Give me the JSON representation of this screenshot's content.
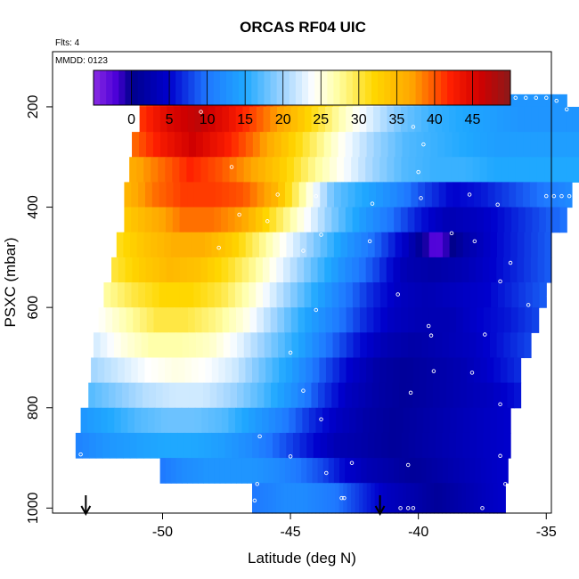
{
  "chart_data": {
    "type": "heatmap",
    "title": "ORCAS RF04 UIC",
    "annotations": {
      "flights": "Flts: 4",
      "date": "MMDD: 0123"
    },
    "xlabel": "Latitude (deg N)",
    "ylabel": "PSXC (mbar)",
    "xlim": [
      -54.3,
      -34.8
    ],
    "ylim": [
      1010,
      90
    ],
    "x_ticks": [
      -50,
      -45,
      -40,
      -35
    ],
    "x_tick_labels": [
      "-50",
      "-45",
      "-40",
      "-35"
    ],
    "y_ticks": [
      200,
      400,
      600,
      800,
      1000
    ],
    "y_tick_labels": [
      "200",
      "400",
      "600",
      "800",
      "1000"
    ],
    "colorbar": {
      "range": [
        -5,
        50
      ],
      "ticks": [
        0,
        5,
        10,
        15,
        20,
        25,
        30,
        35,
        40,
        45
      ],
      "tick_labels": [
        "0",
        "5",
        "10",
        "15",
        "20",
        "25",
        "30",
        "35",
        "40",
        "45"
      ],
      "stops": [
        {
          "v": -5,
          "c": "#8a2be2"
        },
        {
          "v": -2,
          "c": "#4b00d8"
        },
        {
          "v": 0,
          "c": "#00008c"
        },
        {
          "v": 5,
          "c": "#0000cd"
        },
        {
          "v": 10,
          "c": "#1f78ff"
        },
        {
          "v": 15,
          "c": "#1fa8ff"
        },
        {
          "v": 20,
          "c": "#9fd4ff"
        },
        {
          "v": 24,
          "c": "#ffffff"
        },
        {
          "v": 27,
          "c": "#ffffaa"
        },
        {
          "v": 32,
          "c": "#ffd700"
        },
        {
          "v": 37,
          "c": "#ffa500"
        },
        {
          "v": 42,
          "c": "#ff2000"
        },
        {
          "v": 46,
          "c": "#d00000"
        },
        {
          "v": 50,
          "c": "#8b1a1a"
        }
      ]
    },
    "grid": false,
    "legend": "colorbar-top",
    "arrow_markers_lat": [
      -53.0,
      -41.5
    ],
    "layers": [
      {
        "p_top": 175,
        "p_bot": 200,
        "lat_min": -50.9,
        "lat_max": -34.2,
        "values": [
          40,
          44,
          47,
          45,
          42,
          38,
          34,
          29,
          24,
          20,
          17,
          15,
          14,
          13,
          13,
          13
        ]
      },
      {
        "p_top": 200,
        "p_bot": 250,
        "lat_min": -50.9,
        "lat_max": -33.7,
        "values": [
          41,
          45,
          47,
          44,
          40,
          36,
          31,
          26,
          22,
          18,
          16,
          15,
          14,
          13,
          13,
          13
        ]
      },
      {
        "p_top": 250,
        "p_bot": 300,
        "lat_min": -51.2,
        "lat_max": -33.4,
        "values": [
          39,
          43,
          46,
          43,
          39,
          34,
          29,
          24,
          20,
          17,
          16,
          15,
          14,
          14,
          14,
          14
        ]
      },
      {
        "p_top": 300,
        "p_bot": 350,
        "lat_min": -51.3,
        "lat_max": -33.4,
        "values": [
          36,
          39,
          42,
          40,
          37,
          33,
          28,
          24,
          20,
          17,
          16,
          16,
          15,
          15,
          15,
          15
        ]
      },
      {
        "p_top": 350,
        "p_bot": 400,
        "lat_min": -51.5,
        "lat_max": -34.0,
        "values": [
          35,
          39,
          41,
          41,
          40,
          36,
          27,
          18,
          15,
          12,
          8,
          5,
          6,
          8,
          10,
          12
        ]
      },
      {
        "p_top": 400,
        "p_bot": 450,
        "lat_min": -51.5,
        "lat_max": -34.2,
        "values": [
          33,
          36,
          39,
          39,
          37,
          31,
          25,
          19,
          14,
          10,
          6,
          3,
          4,
          6,
          8,
          10
        ]
      },
      {
        "p_top": 450,
        "p_bot": 500,
        "lat_min": -51.8,
        "lat_max": -34.8,
        "values": [
          31,
          34,
          36,
          36,
          33,
          28,
          23,
          18,
          13,
          9,
          4,
          -3,
          2,
          5,
          7,
          9
        ]
      },
      {
        "p_top": 500,
        "p_bot": 550,
        "lat_min": -52.0,
        "lat_max": -34.8,
        "values": [
          30,
          33,
          35,
          34,
          31,
          27,
          22,
          17,
          12,
          8,
          3,
          2,
          3,
          5,
          7,
          9
        ]
      },
      {
        "p_top": 550,
        "p_bot": 600,
        "lat_min": -52.3,
        "lat_max": -35.0,
        "values": [
          27,
          30,
          32,
          32,
          30,
          26,
          21,
          16,
          11,
          7,
          4,
          3,
          4,
          5,
          7,
          9
        ]
      },
      {
        "p_top": 600,
        "p_bot": 650,
        "lat_min": -52.5,
        "lat_max": -35.3,
        "values": [
          24,
          27,
          30,
          30,
          28,
          25,
          20,
          15,
          11,
          7,
          4,
          3,
          3,
          5,
          6,
          8
        ]
      },
      {
        "p_top": 650,
        "p_bot": 700,
        "lat_min": -52.7,
        "lat_max": -35.6,
        "values": [
          22,
          25,
          27,
          27,
          26,
          23,
          19,
          15,
          10,
          6,
          3,
          2,
          3,
          4,
          6,
          8
        ]
      },
      {
        "p_top": 700,
        "p_bot": 750,
        "lat_min": -52.8,
        "lat_max": -36.0,
        "values": [
          20,
          22,
          24,
          25,
          24,
          22,
          18,
          14,
          9,
          5,
          2,
          1,
          2,
          3,
          5,
          7
        ]
      },
      {
        "p_top": 750,
        "p_bot": 800,
        "lat_min": -52.9,
        "lat_max": -36.0,
        "values": [
          17,
          19,
          21,
          22,
          22,
          20,
          17,
          13,
          8,
          4,
          2,
          1,
          2,
          3,
          4,
          6
        ]
      },
      {
        "p_top": 800,
        "p_bot": 850,
        "lat_min": -53.2,
        "lat_max": -36.4,
        "values": [
          13,
          15,
          17,
          18,
          18,
          17,
          14,
          11,
          7,
          4,
          2,
          1,
          2,
          3,
          4,
          5
        ]
      },
      {
        "p_top": 850,
        "p_bot": 900,
        "lat_min": -53.4,
        "lat_max": -36.4,
        "values": [
          11,
          13,
          14,
          15,
          15,
          14,
          12,
          9,
          6,
          3,
          2,
          1,
          2,
          3,
          4,
          5
        ]
      },
      {
        "p_top": 900,
        "p_bot": 950,
        "lat_min": -50.1,
        "lat_max": -36.5,
        "values": [
          10,
          12,
          13,
          13,
          13,
          12,
          10,
          8,
          5,
          3,
          2,
          1,
          2,
          3,
          4,
          5
        ]
      },
      {
        "p_top": 950,
        "p_bot": 1010,
        "lat_min": -46.5,
        "lat_max": -36.6,
        "values": [
          10,
          11,
          12,
          12,
          11,
          10,
          8,
          6,
          4,
          3,
          2,
          1,
          2,
          3,
          4,
          5
        ]
      }
    ],
    "dew_point_symbols": [
      {
        "lat": -50.8,
        "p": 182
      },
      {
        "lat": -50.4,
        "p": 182
      },
      {
        "lat": -50.0,
        "p": 182
      },
      {
        "lat": -49.6,
        "p": 182
      },
      {
        "lat": -49.2,
        "p": 182
      },
      {
        "lat": -48.8,
        "p": 182
      },
      {
        "lat": -48.4,
        "p": 182
      },
      {
        "lat": -48.0,
        "p": 182
      },
      {
        "lat": -47.6,
        "p": 182
      },
      {
        "lat": -38.6,
        "p": 182
      },
      {
        "lat": -38.2,
        "p": 182
      },
      {
        "lat": -37.8,
        "p": 182
      },
      {
        "lat": -37.4,
        "p": 182
      },
      {
        "lat": -37.0,
        "p": 182
      },
      {
        "lat": -36.6,
        "p": 182
      },
      {
        "lat": -36.2,
        "p": 182
      },
      {
        "lat": -35.8,
        "p": 182
      },
      {
        "lat": -35.4,
        "p": 182
      },
      {
        "lat": -35.0,
        "p": 182
      },
      {
        "lat": -34.6,
        "p": 188
      },
      {
        "lat": -34.2,
        "p": 205
      },
      {
        "lat": -48.5,
        "p": 210
      },
      {
        "lat": -40.2,
        "p": 240
      },
      {
        "lat": -39.8,
        "p": 275
      },
      {
        "lat": -47.3,
        "p": 320
      },
      {
        "lat": -40.0,
        "p": 330
      },
      {
        "lat": -33.5,
        "p": 262
      },
      {
        "lat": -33.5,
        "p": 292
      },
      {
        "lat": -33.4,
        "p": 343
      },
      {
        "lat": -35.0,
        "p": 378
      },
      {
        "lat": -34.7,
        "p": 378
      },
      {
        "lat": -34.4,
        "p": 378
      },
      {
        "lat": -34.1,
        "p": 378
      },
      {
        "lat": -44.0,
        "p": 378
      },
      {
        "lat": -45.5,
        "p": 375
      },
      {
        "lat": -39.9,
        "p": 382
      },
      {
        "lat": -38.0,
        "p": 375
      },
      {
        "lat": -41.8,
        "p": 393
      },
      {
        "lat": -36.9,
        "p": 395
      },
      {
        "lat": -47.0,
        "p": 415
      },
      {
        "lat": -45.9,
        "p": 428
      },
      {
        "lat": -38.7,
        "p": 452
      },
      {
        "lat": -43.8,
        "p": 455
      },
      {
        "lat": -41.9,
        "p": 468
      },
      {
        "lat": -37.8,
        "p": 468
      },
      {
        "lat": -47.8,
        "p": 481
      },
      {
        "lat": -44.5,
        "p": 487
      },
      {
        "lat": -36.4,
        "p": 511
      },
      {
        "lat": -36.8,
        "p": 548
      },
      {
        "lat": -40.8,
        "p": 574
      },
      {
        "lat": -34.9,
        "p": 578
      },
      {
        "lat": -35.7,
        "p": 595
      },
      {
        "lat": -44.0,
        "p": 605
      },
      {
        "lat": -39.6,
        "p": 637
      },
      {
        "lat": -39.5,
        "p": 656
      },
      {
        "lat": -37.4,
        "p": 654
      },
      {
        "lat": -45.0,
        "p": 690
      },
      {
        "lat": -39.4,
        "p": 727
      },
      {
        "lat": -37.9,
        "p": 730
      },
      {
        "lat": -44.5,
        "p": 766
      },
      {
        "lat": -40.3,
        "p": 770
      },
      {
        "lat": -36.8,
        "p": 793
      },
      {
        "lat": -43.8,
        "p": 823
      },
      {
        "lat": -46.2,
        "p": 857
      },
      {
        "lat": -53.2,
        "p": 893
      },
      {
        "lat": -45.0,
        "p": 897
      },
      {
        "lat": -42.6,
        "p": 910
      },
      {
        "lat": -40.4,
        "p": 914
      },
      {
        "lat": -36.8,
        "p": 896
      },
      {
        "lat": -43.6,
        "p": 930
      },
      {
        "lat": -46.3,
        "p": 952
      },
      {
        "lat": -36.6,
        "p": 952
      },
      {
        "lat": -43.0,
        "p": 980
      },
      {
        "lat": -42.9,
        "p": 980
      },
      {
        "lat": -46.4,
        "p": 985
      },
      {
        "lat": -40.7,
        "p": 1000
      },
      {
        "lat": -40.4,
        "p": 1000
      },
      {
        "lat": -40.2,
        "p": 1000
      },
      {
        "lat": -37.5,
        "p": 1000
      }
    ]
  }
}
